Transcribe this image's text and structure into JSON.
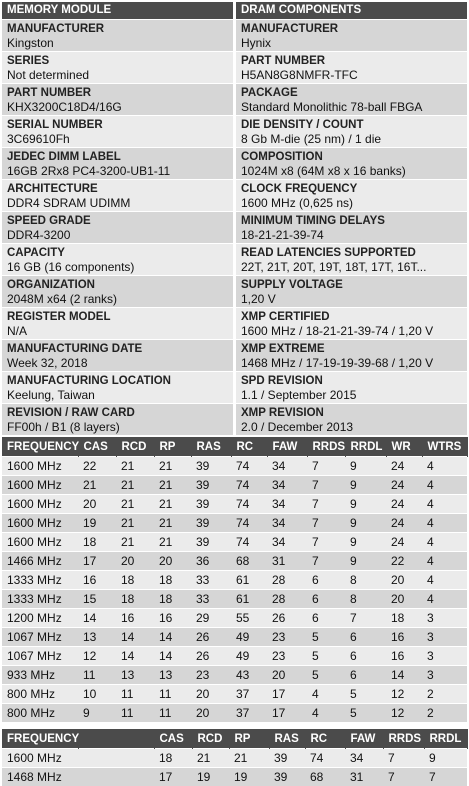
{
  "left_header": "MEMORY MODULE",
  "right_header": "DRAM COMPONENTS",
  "left_fields": [
    {
      "label": "MANUFACTURER",
      "value": "Kingston"
    },
    {
      "label": "SERIES",
      "value": "Not determined"
    },
    {
      "label": "PART NUMBER",
      "value": "KHX3200C18D4/16G"
    },
    {
      "label": "SERIAL NUMBER",
      "value": "3C69610Fh"
    },
    {
      "label": "JEDEC DIMM LABEL",
      "value": "16GB 2Rx8 PC4-3200-UB1-11"
    },
    {
      "label": "ARCHITECTURE",
      "value": "DDR4 SDRAM UDIMM"
    },
    {
      "label": "SPEED GRADE",
      "value": "DDR4-3200"
    },
    {
      "label": "CAPACITY",
      "value": "16 GB (16 components)"
    },
    {
      "label": "ORGANIZATION",
      "value": "2048M x64 (2 ranks)"
    },
    {
      "label": "REGISTER MODEL",
      "value": "N/A"
    },
    {
      "label": "MANUFACTURING DATE",
      "value": "Week 32, 2018"
    },
    {
      "label": "MANUFACTURING LOCATION",
      "value": "Keelung, Taiwan"
    },
    {
      "label": "REVISION / RAW CARD",
      "value": "FF00h / B1 (8 layers)"
    }
  ],
  "right_fields": [
    {
      "label": "MANUFACTURER",
      "value": "Hynix"
    },
    {
      "label": "PART NUMBER",
      "value": "H5AN8G8NMFR-TFC"
    },
    {
      "label": "PACKAGE",
      "value": "Standard Monolithic 78-ball FBGA"
    },
    {
      "label": "DIE DENSITY / COUNT",
      "value": "8 Gb M-die (25 nm) / 1 die"
    },
    {
      "label": "COMPOSITION",
      "value": "1024M x8 (64M x8 x 16 banks)"
    },
    {
      "label": "CLOCK FREQUENCY",
      "value": "1600 MHz (0,625 ns)"
    },
    {
      "label": "MINIMUM TIMING DELAYS",
      "value": "18-21-21-39-74"
    },
    {
      "label": "READ LATENCIES SUPPORTED",
      "value": "22T, 21T, 20T, 19T, 18T, 17T, 16T..."
    },
    {
      "label": "SUPPLY VOLTAGE",
      "value": "1,20 V"
    },
    {
      "label": "XMP CERTIFIED",
      "value": "1600 MHz / 18-21-21-39-74 / 1,20 V"
    },
    {
      "label": "XMP EXTREME",
      "value": "1468 MHz / 17-19-19-39-68 / 1,20 V"
    },
    {
      "label": "SPD REVISION",
      "value": "1.1 / September 2015"
    },
    {
      "label": "XMP REVISION",
      "value": "2.0 / December 2013"
    }
  ],
  "timing_table": {
    "headers": [
      "FREQUENCY",
      "CAS",
      "RCD",
      "RP",
      "RAS",
      "RC",
      "FAW",
      "RRDS",
      "RRDL",
      "WR",
      "WTRS"
    ],
    "rows": [
      [
        "1600 MHz",
        "22",
        "21",
        "21",
        "39",
        "74",
        "34",
        "7",
        "9",
        "24",
        "4"
      ],
      [
        "1600 MHz",
        "21",
        "21",
        "21",
        "39",
        "74",
        "34",
        "7",
        "9",
        "24",
        "4"
      ],
      [
        "1600 MHz",
        "20",
        "21",
        "21",
        "39",
        "74",
        "34",
        "7",
        "9",
        "24",
        "4"
      ],
      [
        "1600 MHz",
        "19",
        "21",
        "21",
        "39",
        "74",
        "34",
        "7",
        "9",
        "24",
        "4"
      ],
      [
        "1600 MHz",
        "18",
        "21",
        "21",
        "39",
        "74",
        "34",
        "7",
        "9",
        "24",
        "4"
      ],
      [
        "1466 MHz",
        "17",
        "20",
        "20",
        "36",
        "68",
        "31",
        "7",
        "9",
        "22",
        "4"
      ],
      [
        "1333 MHz",
        "16",
        "18",
        "18",
        "33",
        "61",
        "28",
        "6",
        "8",
        "20",
        "4"
      ],
      [
        "1333 MHz",
        "15",
        "18",
        "18",
        "33",
        "61",
        "28",
        "6",
        "8",
        "20",
        "4"
      ],
      [
        "1200 MHz",
        "14",
        "16",
        "16",
        "29",
        "55",
        "26",
        "6",
        "7",
        "18",
        "3"
      ],
      [
        "1067 MHz",
        "13",
        "14",
        "14",
        "26",
        "49",
        "23",
        "5",
        "6",
        "16",
        "3"
      ],
      [
        "1067 MHz",
        "12",
        "14",
        "14",
        "26",
        "49",
        "23",
        "5",
        "6",
        "16",
        "3"
      ],
      [
        "933 MHz",
        "11",
        "13",
        "13",
        "23",
        "43",
        "20",
        "5",
        "6",
        "14",
        "3"
      ],
      [
        "800 MHz",
        "10",
        "11",
        "11",
        "20",
        "37",
        "17",
        "4",
        "5",
        "12",
        "2"
      ],
      [
        "800 MHz",
        "9",
        "11",
        "11",
        "20",
        "37",
        "17",
        "4",
        "5",
        "12",
        "2"
      ]
    ]
  },
  "xmp_table": {
    "headers": [
      "FREQUENCY",
      "",
      "CAS",
      "RCD",
      "RP",
      "RAS",
      "RC",
      "FAW",
      "RRDS",
      "RRDL"
    ],
    "rows": [
      [
        "1600 MHz",
        "",
        "18",
        "21",
        "21",
        "39",
        "74",
        "34",
        "7",
        "9"
      ],
      [
        "1468 MHz",
        "",
        "17",
        "19",
        "19",
        "39",
        "68",
        "31",
        "7",
        "7"
      ]
    ]
  }
}
